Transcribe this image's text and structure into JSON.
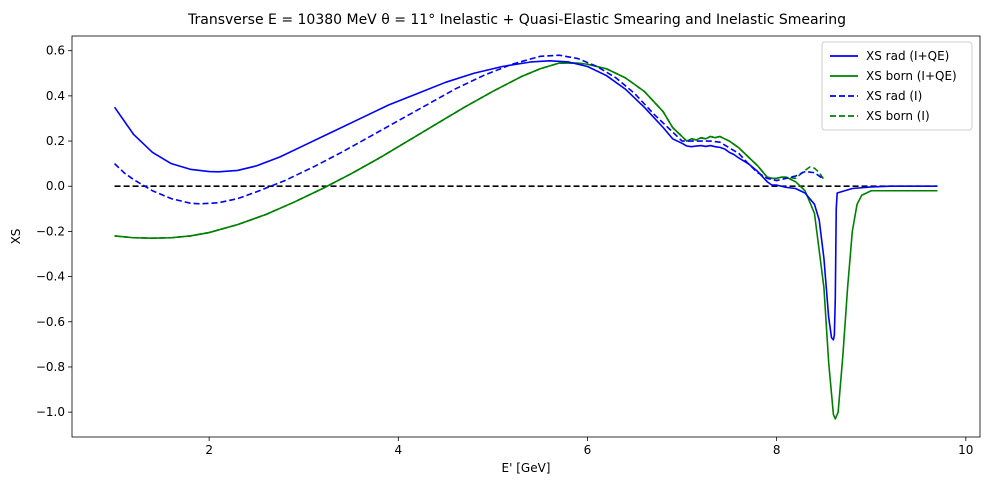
{
  "chart_data": {
    "type": "line",
    "title": "Transverse E = 10380 MeV θ = 11° Inelastic + Quasi-Elastic Smearing and Inelastic Smearing",
    "xlabel": "E' [GeV]",
    "ylabel": "XS",
    "xlim": [
      0.55,
      10.15
    ],
    "ylim": [
      -1.11,
      0.665
    ],
    "xticks": [
      2,
      4,
      6,
      8,
      10
    ],
    "yticks": [
      -1.0,
      -0.8,
      -0.6,
      -0.4,
      -0.2,
      0.0,
      0.2,
      0.4,
      0.6
    ],
    "xtick_labels": [
      "2",
      "4",
      "6",
      "8",
      "10"
    ],
    "ytick_labels": [
      "−1.0",
      "−0.8",
      "−0.6",
      "−0.4",
      "−0.2",
      "0.0",
      "0.2",
      "0.4",
      "0.6"
    ],
    "legend_position": "upper-right",
    "series": [
      {
        "name": "XS rad (I+QE)",
        "color": "#0000ff",
        "style": "solid",
        "x": [
          1.0,
          1.2,
          1.4,
          1.6,
          1.8,
          2.0,
          2.1,
          2.3,
          2.5,
          2.75,
          3.0,
          3.3,
          3.6,
          3.9,
          4.2,
          4.5,
          4.8,
          5.1,
          5.4,
          5.6,
          5.8,
          6.0,
          6.2,
          6.4,
          6.6,
          6.8,
          6.9,
          7.0,
          7.05,
          7.1,
          7.15,
          7.2,
          7.25,
          7.3,
          7.35,
          7.4,
          7.45,
          7.5,
          7.55,
          7.6,
          7.7,
          7.8,
          7.9,
          7.95,
          8.0,
          8.05,
          8.1,
          8.2,
          8.3,
          8.4,
          8.45,
          8.5,
          8.55,
          8.58,
          8.6,
          8.61,
          8.62,
          8.63,
          8.64,
          8.8,
          9.0,
          9.2,
          9.5,
          9.7
        ],
        "y": [
          0.35,
          0.23,
          0.15,
          0.1,
          0.075,
          0.065,
          0.064,
          0.07,
          0.09,
          0.13,
          0.18,
          0.24,
          0.3,
          0.36,
          0.41,
          0.46,
          0.5,
          0.53,
          0.55,
          0.555,
          0.55,
          0.53,
          0.49,
          0.43,
          0.35,
          0.26,
          0.21,
          0.19,
          0.178,
          0.175,
          0.178,
          0.18,
          0.176,
          0.18,
          0.175,
          0.172,
          0.165,
          0.15,
          0.14,
          0.125,
          0.1,
          0.065,
          0.02,
          0.005,
          0.005,
          0.0,
          -0.005,
          -0.01,
          -0.03,
          -0.08,
          -0.15,
          -0.32,
          -0.58,
          -0.67,
          -0.68,
          -0.66,
          -0.5,
          -0.1,
          -0.03,
          -0.01,
          -0.003,
          0.0,
          0.0,
          0.0
        ]
      },
      {
        "name": "XS born (I+QE)",
        "color": "#008000",
        "style": "solid",
        "x": [
          1.0,
          1.2,
          1.4,
          1.6,
          1.8,
          2.0,
          2.3,
          2.6,
          2.9,
          3.2,
          3.5,
          3.8,
          4.1,
          4.4,
          4.7,
          5.0,
          5.3,
          5.5,
          5.7,
          5.9,
          6.0,
          6.2,
          6.4,
          6.6,
          6.8,
          6.9,
          7.0,
          7.05,
          7.1,
          7.15,
          7.2,
          7.25,
          7.3,
          7.35,
          7.4,
          7.45,
          7.5,
          7.6,
          7.7,
          7.8,
          7.9,
          7.95,
          8.0,
          8.05,
          8.1,
          8.2,
          8.3,
          8.4,
          8.5,
          8.55,
          8.6,
          8.62,
          8.65,
          8.7,
          8.75,
          8.8,
          8.85,
          8.9,
          9.0,
          9.2,
          9.5,
          9.7
        ],
        "y": [
          -0.22,
          -0.228,
          -0.23,
          -0.228,
          -0.22,
          -0.205,
          -0.17,
          -0.125,
          -0.07,
          -0.01,
          0.055,
          0.125,
          0.2,
          0.275,
          0.35,
          0.42,
          0.485,
          0.52,
          0.545,
          0.545,
          0.54,
          0.52,
          0.48,
          0.42,
          0.33,
          0.26,
          0.22,
          0.2,
          0.21,
          0.205,
          0.215,
          0.21,
          0.22,
          0.215,
          0.22,
          0.21,
          0.2,
          0.17,
          0.13,
          0.09,
          0.04,
          0.035,
          0.035,
          0.04,
          0.04,
          0.02,
          -0.02,
          -0.12,
          -0.45,
          -0.78,
          -1.01,
          -1.03,
          -1.0,
          -0.75,
          -0.45,
          -0.2,
          -0.08,
          -0.04,
          -0.02,
          -0.02,
          -0.02,
          -0.02
        ]
      },
      {
        "name": "XS rad (I)",
        "color": "#0000ff",
        "style": "dashed",
        "x": [
          1.0,
          1.1,
          1.2,
          1.4,
          1.6,
          1.8,
          1.9,
          2.1,
          2.3,
          2.5,
          2.8,
          3.1,
          3.4,
          3.7,
          4.0,
          4.3,
          4.6,
          4.9,
          5.2,
          5.5,
          5.7,
          5.9,
          6.1,
          6.3,
          6.5,
          6.7,
          6.9,
          7.0,
          7.1,
          7.2,
          7.3,
          7.4,
          7.5,
          7.6,
          7.7,
          7.8,
          7.9,
          8.0,
          8.1,
          8.2,
          8.3,
          8.4,
          8.5
        ],
        "y": [
          0.1,
          0.06,
          0.03,
          -0.02,
          -0.055,
          -0.075,
          -0.078,
          -0.073,
          -0.055,
          -0.025,
          0.025,
          0.085,
          0.15,
          0.22,
          0.29,
          0.36,
          0.43,
          0.49,
          0.54,
          0.575,
          0.58,
          0.565,
          0.53,
          0.48,
          0.41,
          0.32,
          0.24,
          0.2,
          0.2,
          0.2,
          0.2,
          0.195,
          0.17,
          0.145,
          0.1,
          0.06,
          0.035,
          0.025,
          0.035,
          0.045,
          0.065,
          0.06,
          0.03
        ]
      },
      {
        "name": "XS born (I)",
        "color": "#008000",
        "style": "dashed",
        "x": [
          1.0,
          1.2,
          1.4,
          1.6,
          1.8,
          2.0,
          2.3,
          2.6,
          2.9,
          3.2,
          3.5,
          3.8,
          4.1,
          4.4,
          4.7,
          5.0,
          5.3,
          5.5,
          5.7,
          5.9,
          6.0,
          6.2,
          6.4,
          6.6,
          6.8,
          6.9,
          7.0,
          7.05,
          7.1,
          7.15,
          7.2,
          7.25,
          7.3,
          7.35,
          7.4,
          7.45,
          7.5,
          7.6,
          7.7,
          7.8,
          7.9,
          7.95,
          8.0,
          8.05,
          8.1,
          8.2,
          8.3,
          8.35,
          8.4,
          8.45,
          8.5
        ],
        "y": [
          -0.22,
          -0.228,
          -0.23,
          -0.228,
          -0.22,
          -0.205,
          -0.17,
          -0.125,
          -0.07,
          -0.01,
          0.055,
          0.125,
          0.2,
          0.275,
          0.35,
          0.42,
          0.485,
          0.52,
          0.545,
          0.545,
          0.54,
          0.52,
          0.48,
          0.42,
          0.33,
          0.26,
          0.22,
          0.2,
          0.21,
          0.205,
          0.215,
          0.21,
          0.22,
          0.215,
          0.22,
          0.21,
          0.2,
          0.17,
          0.13,
          0.09,
          0.04,
          0.035,
          0.035,
          0.04,
          0.04,
          0.035,
          0.07,
          0.085,
          0.08,
          0.06,
          0.03
        ]
      }
    ],
    "reference_line": {
      "name": "zero-line",
      "color": "#000000",
      "style": "dashed",
      "x": [
        1.0,
        9.7
      ],
      "y": [
        0.0,
        0.0
      ]
    }
  }
}
